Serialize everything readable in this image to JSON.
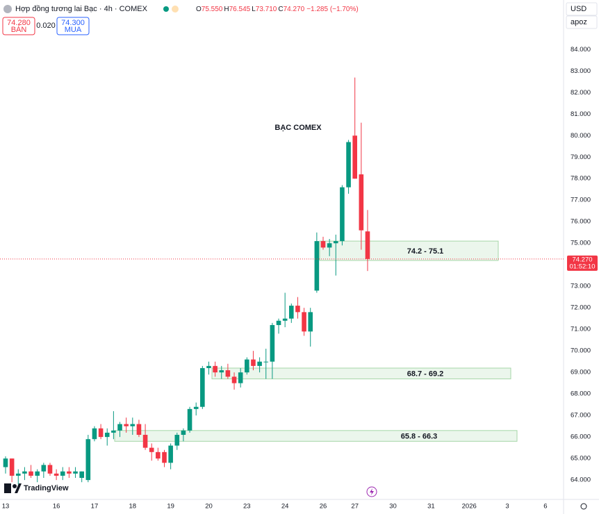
{
  "chart_data": {
    "type": "candlestick",
    "title": "Hợp đồng tương lai Bạc · 4h · COMEX",
    "ohlc_header": [
      {
        "label": "O",
        "value": "75.550"
      },
      {
        "label": "H",
        "value": "76.545"
      },
      {
        "label": "L",
        "value": "73.710"
      },
      {
        "label": "C",
        "value": "74.270"
      }
    ],
    "change": "−1.285 (−1.70%)",
    "bid": {
      "price": "74.280",
      "label": "BÁN"
    },
    "spread": "0.020",
    "ask": {
      "price": "74.300",
      "label": "MUA"
    },
    "currency": "USD",
    "unit": "apoz",
    "annotation": "BẠC COMEX",
    "zones": [
      {
        "label": "74.2 - 75.1",
        "low": 74.2,
        "high": 75.1
      },
      {
        "label": "68.7 - 69.2",
        "low": 68.7,
        "high": 69.2
      },
      {
        "label": "65.8 - 66.3",
        "low": 65.8,
        "high": 66.3
      }
    ],
    "last_price_label": "74.270",
    "countdown": "01:52:10",
    "brand": "TradingView",
    "up_color": "#089981",
    "down_color": "#f23645",
    "categories": [
      "13",
      null,
      null,
      null,
      null,
      null,
      null,
      null,
      "16",
      null,
      null,
      null,
      null,
      null,
      "17",
      null,
      null,
      null,
      null,
      null,
      "18",
      null,
      null,
      null,
      null,
      null,
      "19",
      null,
      null,
      null,
      null,
      null,
      "20",
      null,
      null,
      null,
      null,
      null,
      "23",
      null,
      null,
      null,
      null,
      null,
      "24",
      null,
      null,
      null,
      null,
      null,
      "26",
      null,
      null,
      null,
      null,
      "27",
      null,
      null,
      null,
      null,
      null,
      "30",
      null,
      null,
      null,
      null,
      null,
      "31",
      null,
      null,
      null,
      null,
      null,
      "2026",
      null,
      null,
      null,
      null,
      null,
      "3",
      null,
      null,
      null,
      null,
      null,
      "6",
      null,
      null
    ],
    "open": [
      64.6,
      65.0,
      64.2,
      64.3,
      64.4,
      64.2,
      64.4,
      64.7,
      64.3,
      64.2,
      64.4,
      64.3,
      64.1,
      64.0,
      65.9,
      66.4,
      66.0,
      66.2,
      66.3,
      66.6,
      66.5,
      66.6,
      66.1,
      65.5,
      65.3,
      65.3,
      64.8,
      65.6,
      66.1,
      66.3,
      67.3,
      67.4,
      69.2,
      69.3,
      69.0,
      69.1,
      68.8,
      68.5,
      69.0,
      69.6,
      69.3,
      69.5,
      69.5,
      71.2,
      71.4,
      71.5,
      72.1,
      71.8,
      70.9,
      72.8,
      75.1,
      74.8,
      75.0,
      75.1,
      77.6,
      80.0,
      78.2,
      75.55,
      null,
      null,
      null,
      null,
      null,
      null,
      null,
      null,
      null,
      null,
      null,
      null,
      null,
      null,
      null,
      null,
      null,
      null,
      null,
      null,
      null,
      null,
      null,
      null,
      null,
      null,
      null,
      null,
      null,
      null
    ],
    "high": [
      65.1,
      65.0,
      64.5,
      64.6,
      64.7,
      64.5,
      64.8,
      64.8,
      64.5,
      64.6,
      64.6,
      64.6,
      64.4,
      66.1,
      66.5,
      66.6,
      66.4,
      67.2,
      66.7,
      66.9,
      66.9,
      66.8,
      66.6,
      65.7,
      65.5,
      65.4,
      65.7,
      66.2,
      66.4,
      67.4,
      67.6,
      69.3,
      69.5,
      69.5,
      69.3,
      69.4,
      69.0,
      69.2,
      69.7,
      70.0,
      69.7,
      70.1,
      71.3,
      71.5,
      72.7,
      72.2,
      72.5,
      72.0,
      72.0,
      75.5,
      75.3,
      75.2,
      75.4,
      77.7,
      79.8,
      82.7,
      80.6,
      76.545,
      null,
      null,
      null,
      null,
      null,
      null,
      null,
      null,
      null,
      null,
      null,
      null,
      null,
      null,
      null,
      null,
      null,
      null,
      null,
      null,
      null,
      null,
      null,
      null,
      null,
      null,
      null,
      null,
      null,
      null
    ],
    "low": [
      64.3,
      63.9,
      63.8,
      64.0,
      64.1,
      63.9,
      64.1,
      64.2,
      64.0,
      64.0,
      64.1,
      64.1,
      63.9,
      63.9,
      65.8,
      65.9,
      65.6,
      65.9,
      66.0,
      66.2,
      66.1,
      66.0,
      65.4,
      64.9,
      64.9,
      64.6,
      64.5,
      65.4,
      65.8,
      66.2,
      67.0,
      67.3,
      68.9,
      68.8,
      68.7,
      68.7,
      68.2,
      68.3,
      68.9,
      69.1,
      69.0,
      68.7,
      68.7,
      70.8,
      71.1,
      71.3,
      71.5,
      70.7,
      70.2,
      72.7,
      74.7,
      74.4,
      73.5,
      74.9,
      77.3,
      78.0,
      74.7,
      73.71,
      null,
      null,
      null,
      null,
      null,
      null,
      null,
      null,
      null,
      null,
      null,
      null,
      null,
      null,
      null,
      null,
      null,
      null,
      null,
      null,
      null,
      null,
      null,
      null,
      null,
      null,
      null,
      null,
      null,
      null
    ],
    "close": [
      65.0,
      64.2,
      64.3,
      64.4,
      64.2,
      64.4,
      64.7,
      64.3,
      64.2,
      64.4,
      64.3,
      64.4,
      64.4,
      65.9,
      66.4,
      66.0,
      66.2,
      66.3,
      66.6,
      66.5,
      66.6,
      66.1,
      65.5,
      65.3,
      65.0,
      64.8,
      65.6,
      66.1,
      66.3,
      67.3,
      67.4,
      69.2,
      69.3,
      69.0,
      69.1,
      68.8,
      68.5,
      69.0,
      69.6,
      69.3,
      69.5,
      69.5,
      71.2,
      71.4,
      71.5,
      72.1,
      71.8,
      70.9,
      71.8,
      75.1,
      74.8,
      75.0,
      75.1,
      77.6,
      79.7,
      78.0,
      75.6,
      74.27,
      null,
      null,
      null,
      null,
      null,
      null,
      null,
      null,
      null,
      null,
      null,
      null,
      null,
      null,
      null,
      null,
      null,
      null,
      null,
      null,
      null,
      null,
      null,
      null,
      null,
      null,
      null,
      null,
      null,
      null
    ],
    "ylim": [
      63.1,
      86.3
    ],
    "yticks": [
      {
        "value": 64,
        "label": "64.000"
      },
      {
        "value": 65,
        "label": "65.000"
      },
      {
        "value": 66,
        "label": "66.000"
      },
      {
        "value": 67,
        "label": "67.000"
      },
      {
        "value": 68,
        "label": "68.000"
      },
      {
        "value": 69,
        "label": "69.000"
      },
      {
        "value": 70,
        "label": "70.000"
      },
      {
        "value": 71,
        "label": "71.000"
      },
      {
        "value": 72,
        "label": "72.000"
      },
      {
        "value": 73,
        "label": "73.000"
      },
      {
        "value": 74,
        "label": "74.000"
      },
      {
        "value": 75,
        "label": "75.000"
      },
      {
        "value": 76,
        "label": "76.000"
      },
      {
        "value": 77,
        "label": "77.000"
      },
      {
        "value": 78,
        "label": "78.000"
      },
      {
        "value": 79,
        "label": "79.000"
      },
      {
        "value": 80,
        "label": "80.000"
      },
      {
        "value": 81,
        "label": "81.000"
      },
      {
        "value": 82,
        "label": "82.000"
      },
      {
        "value": 83,
        "label": "83.000"
      },
      {
        "value": 84,
        "label": "84.000"
      }
    ],
    "grid": false
  }
}
